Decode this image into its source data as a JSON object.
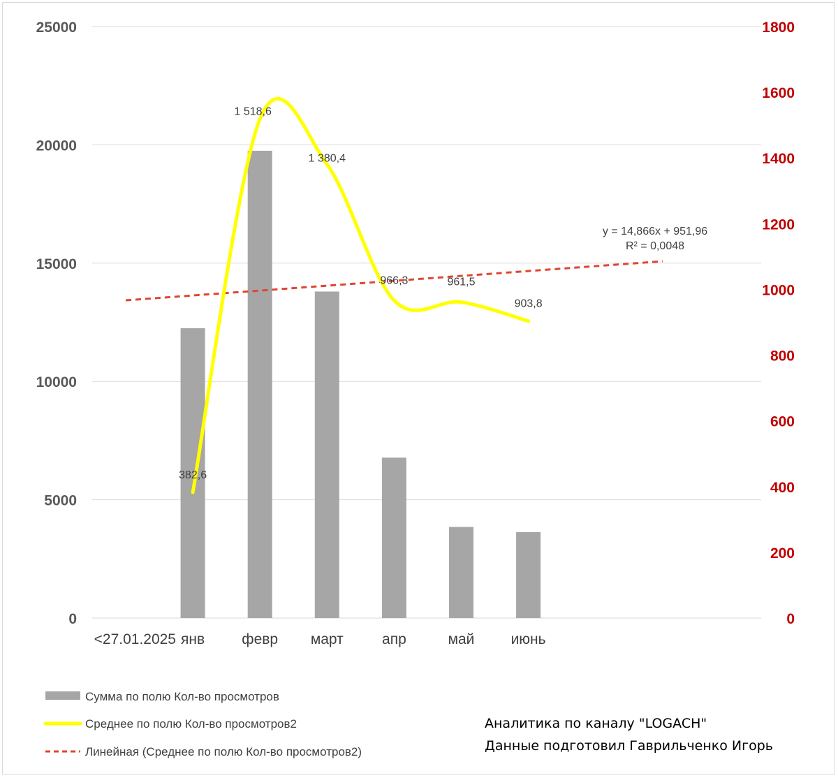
{
  "chart_data": {
    "type": "bar",
    "categories": [
      "<27.01.2025",
      "янв",
      "февр",
      "март",
      "апр",
      "май",
      "июнь",
      "",
      ""
    ],
    "series": [
      {
        "name": "Сумма по полю Кол-во просмотров",
        "kind": "bar",
        "axis": "left",
        "color": "#a6a6a6",
        "values": [
          null,
          12250,
          19750,
          13800,
          6780,
          3850,
          3630,
          null,
          null
        ]
      },
      {
        "name": "Среднее по полю Кол-во просмотров2",
        "kind": "smooth-line",
        "axis": "right",
        "color": "#ffff00",
        "values": [
          null,
          382.6,
          1518.6,
          1380.4,
          966.3,
          961.5,
          903.8,
          null,
          null
        ],
        "labels": [
          "",
          "382,6",
          "1 518,6",
          "1 380,4",
          "966,3",
          "961,5",
          "903,8",
          "",
          ""
        ]
      },
      {
        "name": "Линейная (Среднее по полю Кол-во просмотров2)",
        "kind": "trendline",
        "axis": "right",
        "color": "#e0452f",
        "equation": "y = 14,866x + 951,96",
        "r2": "R² = 0,0048",
        "slope": 14.866,
        "intercept": 951.96
      }
    ],
    "left_axis": {
      "min": 0,
      "max": 25000,
      "ticks": [
        "0",
        "5000",
        "10000",
        "15000",
        "20000",
        "25000"
      ]
    },
    "right_axis": {
      "min": 0,
      "max": 1800,
      "ticks": [
        "0",
        "200",
        "400",
        "600",
        "800",
        "1000",
        "1200",
        "1400",
        "1600",
        "1800"
      ],
      "color": "#c00000"
    },
    "grid": true,
    "legend_position": "bottom-left"
  },
  "credits": {
    "line1": "Аналитика по каналу \"LOGACH\"",
    "line2": "Данные подготовил Гаврильченко Игорь"
  }
}
